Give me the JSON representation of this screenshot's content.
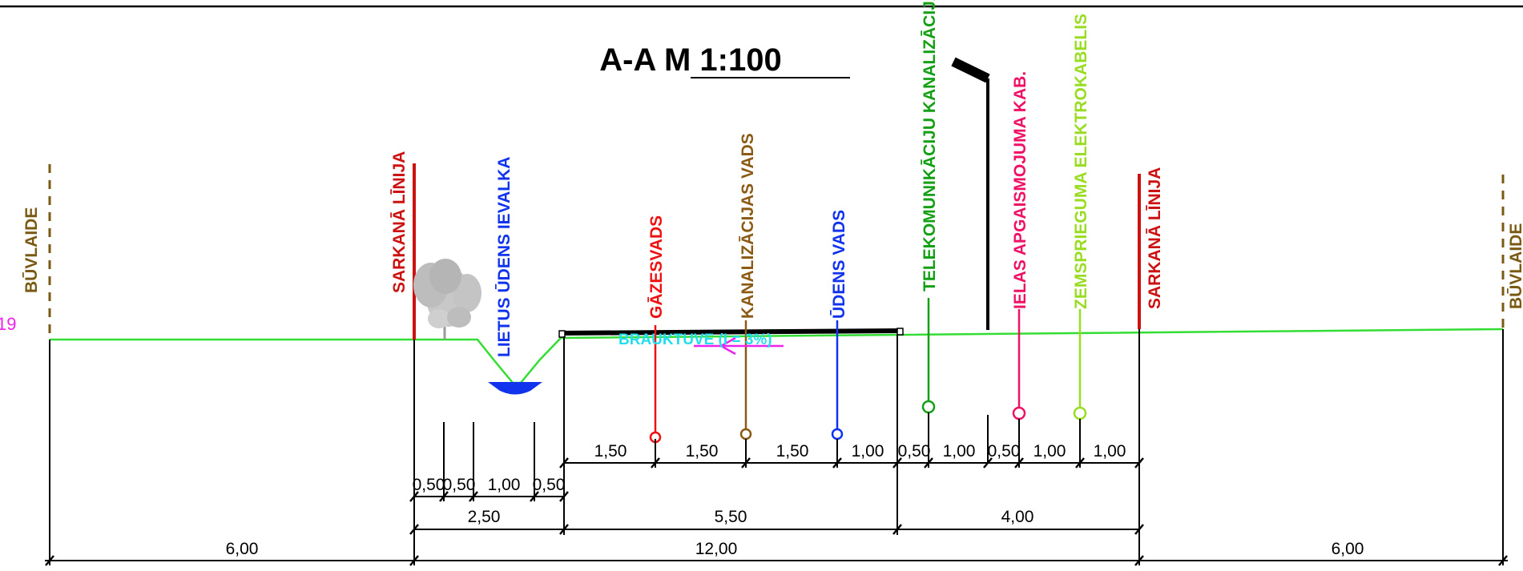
{
  "title": "A-A M 1:100",
  "labels": {
    "buvlaide_left": "BŪVLAIDE",
    "buvlaide_right": "BŪVLAIDE",
    "sarkana_linija_left": "SARKANĀ LĪNIJA",
    "sarkana_linija_right": "SARKANĀ LĪNIJA",
    "lietus_udens": "LIETUS ŪDENS IEVALKA",
    "gazesvads": "GĀZESVADS",
    "kanalizacijas": "KANALIZĀCIJAS VADS",
    "udens_vads": "ŪDENS VADS",
    "telekom": "TELEKOMUNIKĀCIJU KANALIZĀCIJA",
    "ielas_apgaismojuma": "IELAS APGAISMOJUMA KAB.",
    "zemsprieguma": "ZEMSPRIEGUMA ELEKTROKABELIS",
    "brauktuve": "BRAUKTUVE (I = 3%)",
    "edge_mark": "19"
  },
  "dimensions": {
    "row1": [
      "1,50",
      "1,50",
      "1,50",
      "1,00",
      "0,50",
      "1,00",
      "0,50",
      "1,00",
      "1,00"
    ],
    "row2": [
      "0,50",
      "0,50",
      "1,00",
      "0,50"
    ],
    "row3": [
      "2,50",
      "5,50",
      "4,00"
    ],
    "row4": [
      "6,00",
      "12,00",
      "6,00"
    ]
  },
  "colors": {
    "ground": "#33dd33",
    "red_line": "#cc1111",
    "buvlaide": "#7a5a12",
    "gas": "#ee1111",
    "sewer": "#8b5a14",
    "water": "#1133ee",
    "telecom": "#14a014",
    "lighting": "#ee1166",
    "lowvoltage": "#99dd22",
    "brauktuve_text": "#22ddee",
    "arrow": "#ee22ee",
    "ditch_water": "#1133ee"
  }
}
